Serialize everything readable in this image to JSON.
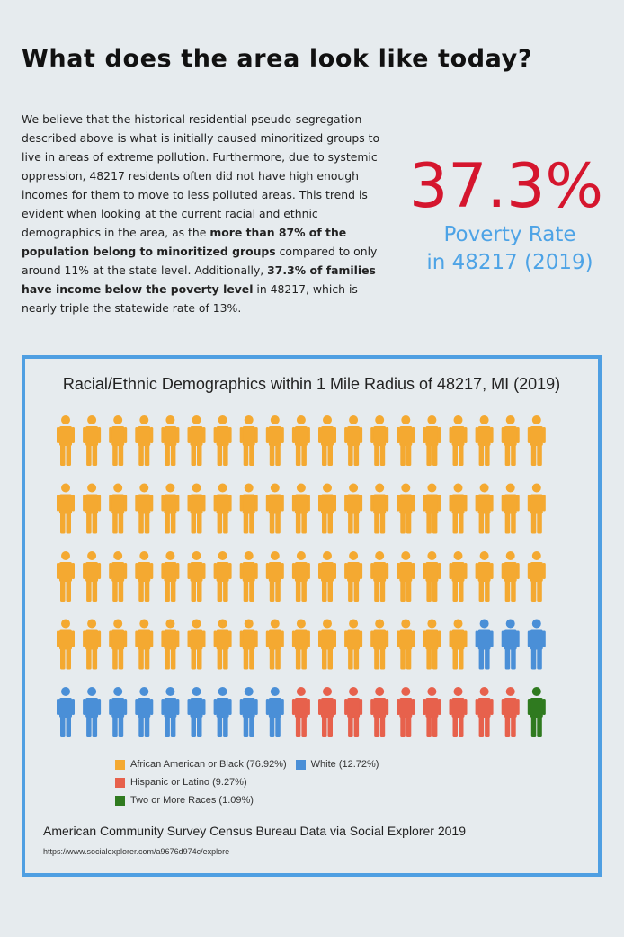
{
  "heading": "What does the area look like today?",
  "intro": {
    "p1": "We believe that the historical residential pseudo-segregation described above is what is initially caused minoritized groups to live in areas of extreme pollution. Furthermore, due to systemic oppression, 48217 residents often did not have high enough incomes for them to move to less polluted areas. This trend is evident when looking at the current racial and ethnic demographics in the area, as the ",
    "b1": "more than 87% of the population belong to minoritized groups",
    "p2": " compared to only around 11% at the state level.  Additionally, ",
    "b2": "37.3% of families have income below the poverty level",
    "p3": " in 48217, which is nearly triple the statewide rate of 13%."
  },
  "stat": {
    "value": "37.3%",
    "label_line1": "Poverty Rate",
    "label_line2": "in 48217 (2019)"
  },
  "chart_data": {
    "type": "pictogram",
    "title": "Racial/Ethnic Demographics within 1 Mile Radius of 48217, MI (2019)",
    "icon": "person-icon",
    "total_icons": 95,
    "columns": 19,
    "rows": 5,
    "series": [
      {
        "name": "African American or Black (76.92%)",
        "count": 73,
        "color": "#f4a931"
      },
      {
        "name": "White (12.72%)",
        "count": 12,
        "color": "#4a8fd7"
      },
      {
        "name": "Hispanic or Latino (9.27%)",
        "count": 9,
        "color": "#e7614c"
      },
      {
        "name": "Two or More Races (1.09%)",
        "count": 1,
        "color": "#2f7a1f"
      }
    ]
  },
  "source": {
    "text": "American Community Survey Census Bureau Data via Social Explorer 2019",
    "url": "https://www.socialexplorer.com/a9676d974c/explore"
  }
}
